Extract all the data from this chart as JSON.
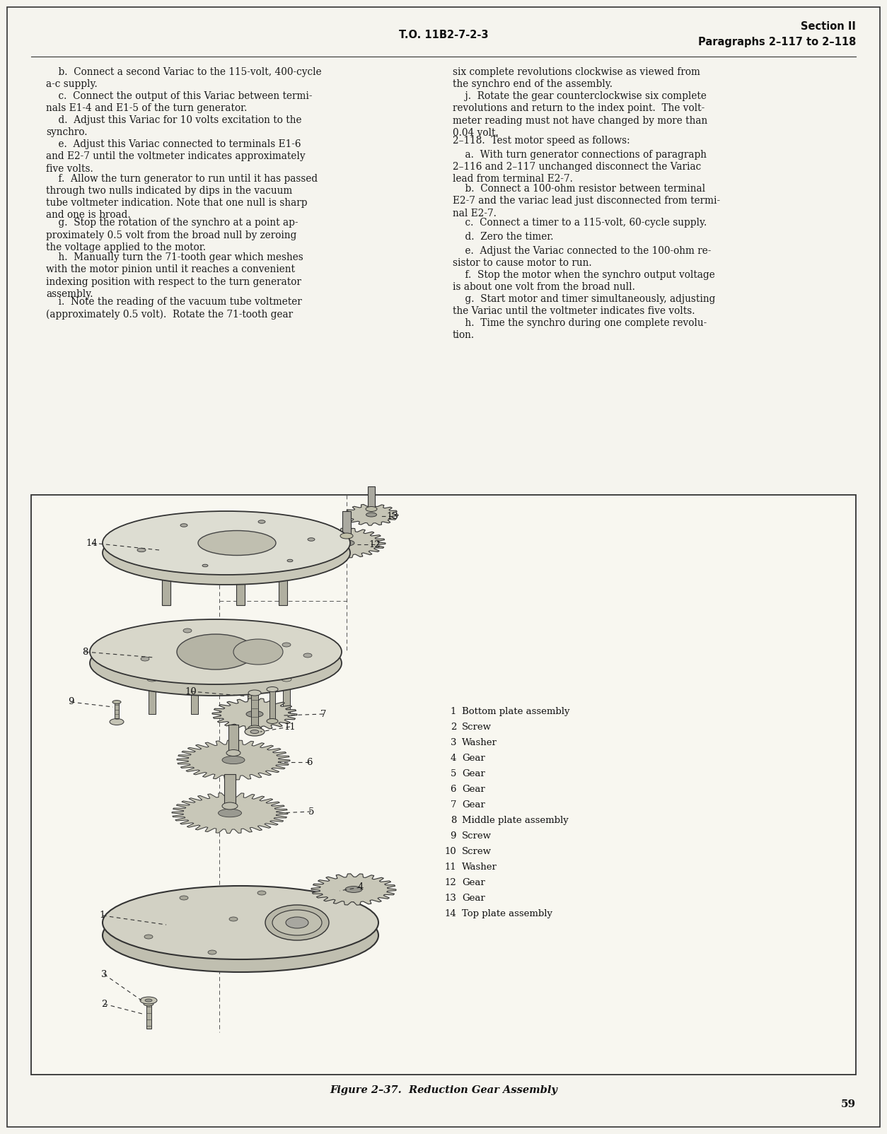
{
  "page_background": "#f5f4ee",
  "border_color": "#222222",
  "text_color": "#1a1a1a",
  "header_left": "T.O. 11B2-7-2-3",
  "header_right_line1": "Section II",
  "header_right_line2": "Paragraphs 2–117 to 2–118",
  "page_number": "59",
  "figure_caption": "Figure 2–37.  Reduction Gear Assembly",
  "col1_paragraphs": [
    "    b.  Connect a second Variac to the 115-volt, 400-cycle\na-c supply.",
    "    c.  Connect the output of this Variac between termi-\nnals E1-4 and E1-5 of the turn generator.",
    "    d.  Adjust this Variac for 10 volts excitation to the\nsynchro.",
    "    e.  Adjust this Variac connected to terminals E1-6\nand E2-7 until the voltmeter indicates approximately\nfive volts.",
    "    f.  Allow the turn generator to run until it has passed\nthrough two nulls indicated by dips in the vacuum\ntube voltmeter indication. Note that one null is sharp\nand one is broad.",
    "    g.  Stop the rotation of the synchro at a point ap-\nproximately 0.5 volt from the broad null by zeroing\nthe voltage applied to the motor.",
    "    h.  Manually turn the 71-tooth gear which meshes\nwith the motor pinion until it reaches a convenient\nindexing position with respect to the turn generator\nassembly.",
    "    i.  Note the reading of the vacuum tube voltmeter\n(approximately 0.5 volt).  Rotate the 71-tooth gear"
  ],
  "col2_paragraphs": [
    "six complete revolutions clockwise as viewed from\nthe synchro end of the assembly.",
    "    j.  Rotate the gear counterclockwise six complete\nrevolutions and return to the index point.  The volt-\nmeter reading must not have changed by more than\n0.04 volt.",
    "2–118.  Test motor speed as follows:",
    "    a.  With turn generator connections of paragraph\n2–116 and 2–117 unchanged disconnect the Variac\nlead from terminal E2-7.",
    "    b.  Connect a 100-ohm resistor between terminal\nE2-7 and the variac lead just disconnected from termi-\nnal E2-7.",
    "    c.  Connect a timer to a 115-volt, 60-cycle supply.",
    "    d.  Zero the timer.",
    "    e.  Adjust the Variac connected to the 100-ohm re-\nsistor to cause motor to run.",
    "    f.  Stop the motor when the synchro output voltage\nis about one volt from the broad null.",
    "    g.  Start motor and timer simultaneously, adjusting\nthe Variac until the voltmeter indicates five volts.",
    "    h.  Time the synchro during one complete revolu-\ntion."
  ],
  "legend_items": [
    [
      "1",
      "Bottom plate assembly"
    ],
    [
      "2",
      "Screw"
    ],
    [
      "3",
      "Washer"
    ],
    [
      "4",
      "Gear"
    ],
    [
      "5",
      "Gear"
    ],
    [
      "6",
      "Gear"
    ],
    [
      "7",
      "Gear"
    ],
    [
      "8",
      "Middle plate assembly"
    ],
    [
      "9",
      "Screw"
    ],
    [
      "10",
      "Screw"
    ],
    [
      "11",
      "Washer"
    ],
    [
      "12",
      "Gear"
    ],
    [
      "13",
      "Gear"
    ],
    [
      "14",
      "Top plate assembly"
    ]
  ]
}
